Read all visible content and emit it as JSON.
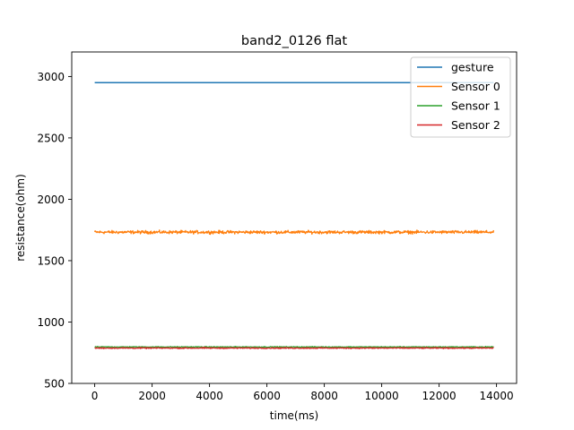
{
  "chart_data": {
    "type": "line",
    "title": "band2_0126 flat",
    "xlabel": "time(ms)",
    "ylabel": "resistance(ohm)",
    "xlim": [
      -800,
      14700
    ],
    "ylim": [
      500,
      3200
    ],
    "x_ticks": [
      0,
      2000,
      4000,
      6000,
      8000,
      10000,
      12000,
      14000
    ],
    "y_ticks": [
      500,
      1000,
      1500,
      2000,
      2500,
      3000
    ],
    "x_tick_labels": [
      "0",
      "2000",
      "4000",
      "6000",
      "8000",
      "10000",
      "12000",
      "14000"
    ],
    "y_tick_labels": [
      "500",
      "1000",
      "1500",
      "2000",
      "2500",
      "3000"
    ],
    "grid": false,
    "legend_position": "top-right",
    "series": [
      {
        "name": "gesture",
        "color": "#1f77b4",
        "x_start": 0,
        "x_end": 13900,
        "mean": 2950,
        "noise": 0
      },
      {
        "name": "Sensor 0",
        "color": "#ff7f0e",
        "x_start": 0,
        "x_end": 13900,
        "mean": 1732,
        "noise": 14
      },
      {
        "name": "Sensor 1",
        "color": "#2ca02c",
        "x_start": 0,
        "x_end": 13900,
        "mean": 797,
        "noise": 4
      },
      {
        "name": "Sensor 2",
        "color": "#d62728",
        "x_start": 0,
        "x_end": 13900,
        "mean": 788,
        "noise": 5
      }
    ]
  }
}
